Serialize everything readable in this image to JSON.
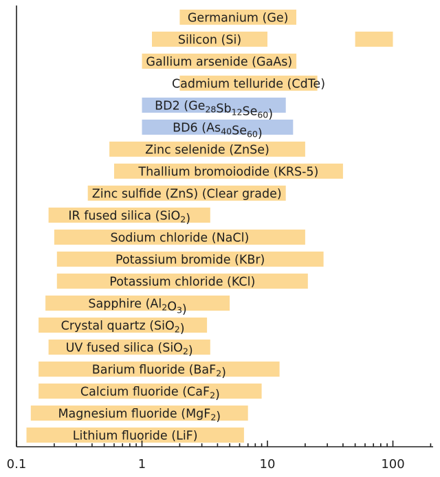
{
  "chart_data": {
    "type": "bar",
    "orientation": "horizontal",
    "x_scale": "log",
    "xlim": [
      0.1,
      200
    ],
    "x_ticks": [
      0.1,
      1,
      10,
      100
    ],
    "x_tick_labels": [
      "0.1",
      "1",
      "10",
      "100"
    ],
    "colors": {
      "default": "#fcd893",
      "highlight": "#b4c8ea"
    },
    "materials": [
      {
        "label": "Germanium (Ge)",
        "sub": [],
        "ranges": [
          [
            2,
            17
          ]
        ],
        "highlight": false
      },
      {
        "label": "Silicon (Si)",
        "sub": [],
        "ranges": [
          [
            1.2,
            10
          ],
          [
            50,
            100
          ]
        ],
        "highlight": false
      },
      {
        "label": "Gallium arsenide (GaAs)",
        "sub": [],
        "ranges": [
          [
            1,
            17
          ]
        ],
        "highlight": false
      },
      {
        "label": "Cadmium telluride (CdTe)",
        "sub": [],
        "ranges": [
          [
            2,
            25
          ]
        ],
        "highlight": false
      },
      {
        "label": "BD2 (Ge28Sb12Se60)",
        "sub": [
          "28",
          "12",
          "60"
        ],
        "ranges": [
          [
            1,
            14
          ]
        ],
        "highlight": true
      },
      {
        "label": "BD6 (As40Se60)",
        "sub": [
          "40",
          "60"
        ],
        "ranges": [
          [
            1,
            16
          ]
        ],
        "highlight": true
      },
      {
        "label": "Zinc selenide (ZnSe)",
        "sub": [],
        "ranges": [
          [
            0.55,
            20
          ]
        ],
        "highlight": false
      },
      {
        "label": "Thallium bromoiodide (KRS-5)",
        "sub": [],
        "ranges": [
          [
            0.6,
            40
          ]
        ],
        "highlight": false
      },
      {
        "label": "Zinc sulfide (ZnS) (Clear grade)",
        "sub": [],
        "ranges": [
          [
            0.37,
            14
          ]
        ],
        "highlight": false
      },
      {
        "label": "IR fused silica (SiO2)",
        "sub": [
          "2"
        ],
        "ranges": [
          [
            0.18,
            3.5
          ]
        ],
        "highlight": false
      },
      {
        "label": "Sodium chloride (NaCl)",
        "sub": [],
        "ranges": [
          [
            0.2,
            20
          ]
        ],
        "highlight": false
      },
      {
        "label": "Potassium bromide (KBr)",
        "sub": [],
        "ranges": [
          [
            0.21,
            28
          ]
        ],
        "highlight": false
      },
      {
        "label": "Potassium chloride (KCl)",
        "sub": [],
        "ranges": [
          [
            0.21,
            21
          ]
        ],
        "highlight": false
      },
      {
        "label": "Sapphire (Al2O3)",
        "sub": [
          "2",
          "3"
        ],
        "ranges": [
          [
            0.17,
            5
          ]
        ],
        "highlight": false
      },
      {
        "label": "Crystal quartz (SiO2)",
        "sub": [
          "2"
        ],
        "ranges": [
          [
            0.15,
            3.3
          ]
        ],
        "highlight": false
      },
      {
        "label": "UV fused silica (SiO2)",
        "sub": [
          "2"
        ],
        "ranges": [
          [
            0.18,
            3.5
          ]
        ],
        "highlight": false
      },
      {
        "label": "Barium fluoride (BaF2)",
        "sub": [
          "2"
        ],
        "ranges": [
          [
            0.15,
            12.5
          ]
        ],
        "highlight": false
      },
      {
        "label": "Calcium fluoride (CaF2)",
        "sub": [
          "2"
        ],
        "ranges": [
          [
            0.15,
            9
          ]
        ],
        "highlight": false
      },
      {
        "label": "Magnesium fluoride (MgF2)",
        "sub": [
          "2"
        ],
        "ranges": [
          [
            0.13,
            7
          ]
        ],
        "highlight": false
      },
      {
        "label": "Lithium fluoride (LiF)",
        "sub": [],
        "ranges": [
          [
            0.12,
            6.5
          ]
        ],
        "highlight": false
      }
    ]
  }
}
